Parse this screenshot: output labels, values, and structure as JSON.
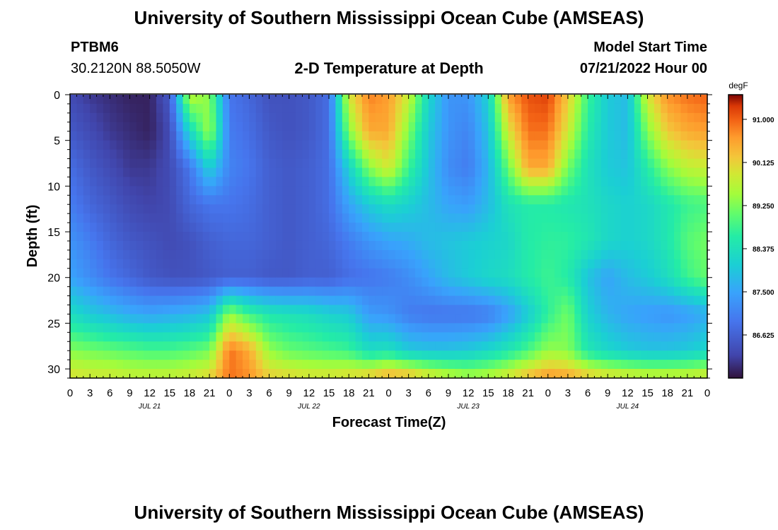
{
  "header": {
    "title": "University of Southern Mississippi Ocean Cube (AMSEAS)",
    "station": "PTBM6",
    "coords": "30.2120N  88.5050W",
    "plot_title": "2-D Temperature at Depth",
    "model_label": "Model Start Time",
    "model_date": "07/21/2022 Hour 00"
  },
  "footer": {
    "title": "University of Southern Mississippi Ocean Cube (AMSEAS)"
  },
  "chart_data": {
    "type": "heatmap",
    "xlabel": "Forecast Time(Z)",
    "ylabel": "Depth (ft)",
    "x_tick_labels": [
      "0",
      "3",
      "6",
      "9",
      "12",
      "15",
      "18",
      "21",
      "0",
      "3",
      "6",
      "9",
      "12",
      "15",
      "18",
      "21",
      "0",
      "3",
      "6",
      "9",
      "12",
      "15",
      "18",
      "21",
      "0",
      "3",
      "6",
      "9",
      "12",
      "15",
      "18",
      "21",
      "0"
    ],
    "date_labels": [
      "JUL 21",
      "JUL 22",
      "JUL 23",
      "JUL 24"
    ],
    "xlim_hours": [
      0,
      96
    ],
    "y_ticks": [
      0,
      5,
      10,
      15,
      20,
      25,
      30
    ],
    "ylim": [
      0,
      31
    ],
    "colorbar": {
      "unit": "degF",
      "ticks": [
        "91.000",
        "90.125",
        "89.250",
        "88.375",
        "87.500",
        "86.625"
      ],
      "range": [
        85.75,
        91.5
      ]
    },
    "columns_hours": [
      0,
      3,
      6,
      9,
      12,
      15,
      18,
      21,
      24,
      27,
      30,
      33,
      36,
      39,
      42,
      45,
      48,
      51,
      54,
      57,
      60,
      63,
      66,
      69,
      72,
      75,
      78,
      81,
      84,
      87,
      90,
      93,
      96
    ],
    "rows_depth_ft": [
      0,
      4,
      8,
      12,
      16,
      20,
      24,
      28,
      31
    ],
    "temperature_degF": [
      [
        86.3,
        86.1,
        86.0,
        85.9,
        85.9,
        86.5,
        89.7,
        89.3,
        86.9,
        86.7,
        86.4,
        86.4,
        86.5,
        86.8,
        89.9,
        90.8,
        90.6,
        89.8,
        88.2,
        87.3,
        87.3,
        88.1,
        90.6,
        91.1,
        91.2,
        90.2,
        88.8,
        88.0,
        87.8,
        89.9,
        90.7,
        90.9,
        91.0
      ],
      [
        86.5,
        86.3,
        86.1,
        86.0,
        85.9,
        86.3,
        88.2,
        89.5,
        87.0,
        86.8,
        86.5,
        86.4,
        86.5,
        86.8,
        89.3,
        90.5,
        90.5,
        89.3,
        88.0,
        87.3,
        87.1,
        87.9,
        89.9,
        90.9,
        90.9,
        89.9,
        88.6,
        88.0,
        87.8,
        89.3,
        90.2,
        90.5,
        90.6
      ],
      [
        86.8,
        86.5,
        86.3,
        86.1,
        86.1,
        86.3,
        86.9,
        88.1,
        87.1,
        86.9,
        86.6,
        86.5,
        86.6,
        86.8,
        88.1,
        89.3,
        89.9,
        88.8,
        87.9,
        87.2,
        87.0,
        87.7,
        89.1,
        90.5,
        90.5,
        89.2,
        88.4,
        88.0,
        87.9,
        88.6,
        89.3,
        89.7,
        89.8
      ],
      [
        87.0,
        86.7,
        86.5,
        86.3,
        86.2,
        86.3,
        86.7,
        86.9,
        86.9,
        86.8,
        86.6,
        86.5,
        86.6,
        86.8,
        87.5,
        88.0,
        88.3,
        88.1,
        87.8,
        87.5,
        87.4,
        87.8,
        88.4,
        88.6,
        88.6,
        88.5,
        88.4,
        88.2,
        88.1,
        88.2,
        88.5,
        88.8,
        88.9
      ],
      [
        87.3,
        87.0,
        86.7,
        86.5,
        86.4,
        86.3,
        86.4,
        86.6,
        86.7,
        86.7,
        86.6,
        86.5,
        86.6,
        86.7,
        87.0,
        87.3,
        87.5,
        87.6,
        87.8,
        87.9,
        88.0,
        88.1,
        88.2,
        88.6,
        88.7,
        88.7,
        88.5,
        88.2,
        88.1,
        88.2,
        88.5,
        89.0,
        89.2
      ],
      [
        87.5,
        87.2,
        86.9,
        86.7,
        86.5,
        86.4,
        86.4,
        86.5,
        86.6,
        86.6,
        86.5,
        86.5,
        86.6,
        86.6,
        86.8,
        86.9,
        87.0,
        87.2,
        87.5,
        87.8,
        88.0,
        88.2,
        88.3,
        88.6,
        88.8,
        88.6,
        87.9,
        87.5,
        87.8,
        88.0,
        88.3,
        88.8,
        89.1
      ],
      [
        88.3,
        88.0,
        87.8,
        87.6,
        87.5,
        87.6,
        87.7,
        87.9,
        89.4,
        88.8,
        88.5,
        88.4,
        88.3,
        88.1,
        88.0,
        87.4,
        87.3,
        87.0,
        86.9,
        86.9,
        86.9,
        87.0,
        87.4,
        88.0,
        88.7,
        89.2,
        88.1,
        87.7,
        87.5,
        87.4,
        87.3,
        87.4,
        87.6
      ],
      [
        89.3,
        89.2,
        89.1,
        89.0,
        88.9,
        88.9,
        89.0,
        89.2,
        90.9,
        90.5,
        89.4,
        89.1,
        89.0,
        88.9,
        88.8,
        88.3,
        88.4,
        88.0,
        87.9,
        87.9,
        88.0,
        88.2,
        88.5,
        88.9,
        89.4,
        89.3,
        88.5,
        88.2,
        88.0,
        87.9,
        87.9,
        88.0,
        88.2
      ],
      [
        90.0,
        89.9,
        89.9,
        89.8,
        89.8,
        89.8,
        89.9,
        90.1,
        90.9,
        90.7,
        90.2,
        90.1,
        90.0,
        90.0,
        90.1,
        90.3,
        90.6,
        90.5,
        90.1,
        89.8,
        89.6,
        89.7,
        90.0,
        90.4,
        90.7,
        90.6,
        90.3,
        90.1,
        90.0,
        89.9,
        89.9,
        89.9,
        90.0
      ]
    ]
  }
}
